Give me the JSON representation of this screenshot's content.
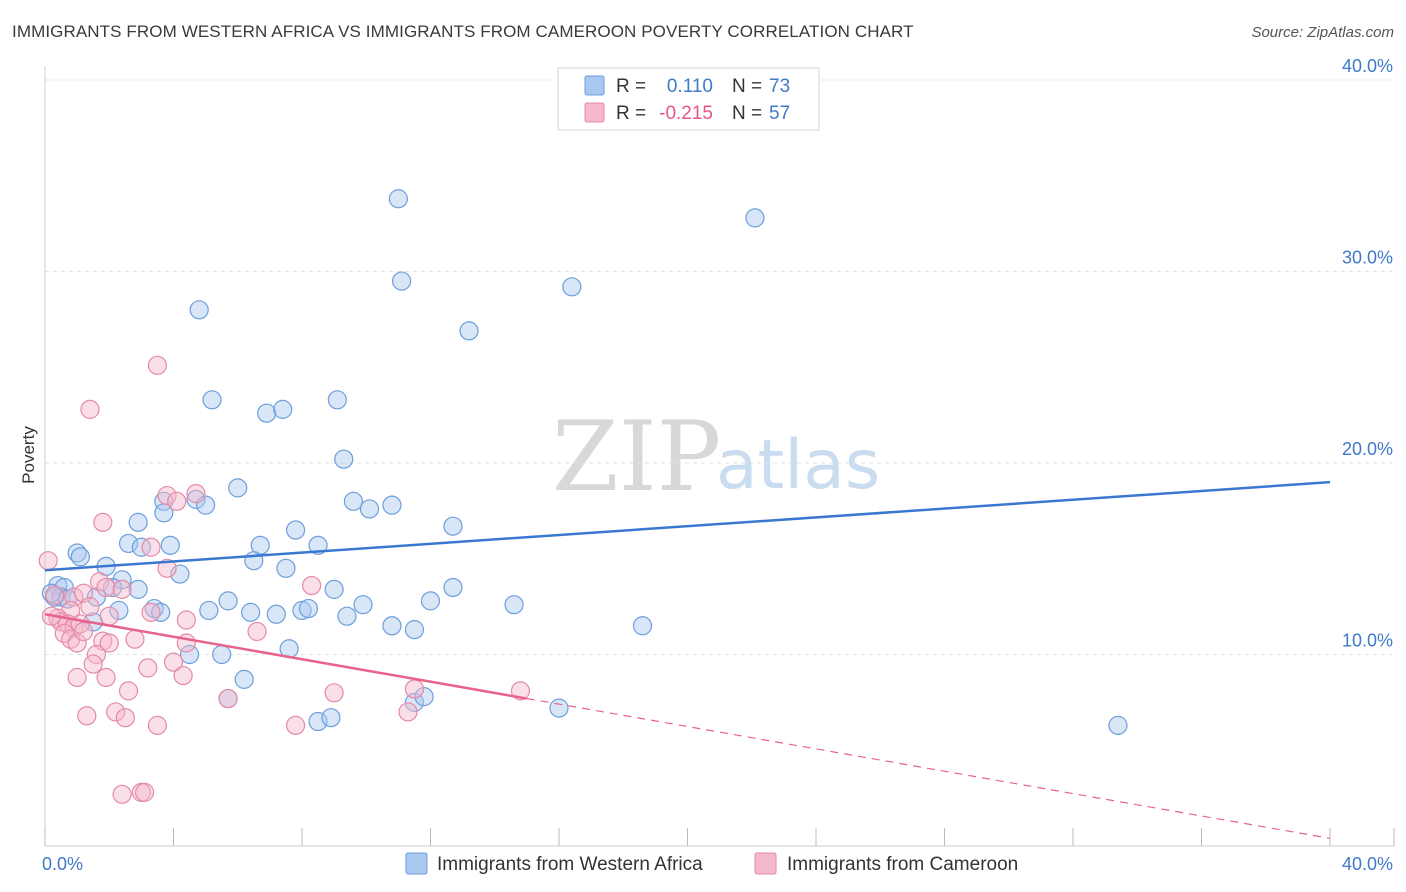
{
  "header": {
    "title": "IMMIGRANTS FROM WESTERN AFRICA VS IMMIGRANTS FROM CAMEROON POVERTY CORRELATION CHART",
    "source": "Source: ZipAtlas.com"
  },
  "watermark": {
    "zip": "ZIP",
    "atlas": "atlas"
  },
  "colors": {
    "blue": "#3a78d0",
    "blue_fill": "#a9c8ef",
    "pink": "#e8638c",
    "pink_fill": "#f6b9cb",
    "axis_label": "#3f7ac9",
    "grid": "#e2e2e2"
  },
  "legend": {
    "rows": [
      {
        "r_label": "R =",
        "r_value": "0.110",
        "n_label": "N =",
        "n_value": "73"
      },
      {
        "r_label": "R =",
        "r_value": "-0.215",
        "n_label": "N =",
        "n_value": "57"
      }
    ]
  },
  "chart_data": {
    "type": "scatter",
    "title": "IMMIGRANTS FROM WESTERN AFRICA VS IMMIGRANTS FROM CAMEROON POVERTY CORRELATION CHART",
    "xlabel": "",
    "ylabel": "Poverty",
    "xlim": [
      0,
      40
    ],
    "ylim": [
      0,
      40
    ],
    "x_tick_labels": [
      "0.0%",
      "40.0%"
    ],
    "y_tick_labels": [
      "10.0%",
      "20.0%",
      "30.0%",
      "40.0%"
    ],
    "y_tick_values": [
      10,
      20,
      30,
      40
    ],
    "legend_position": "top-center",
    "series": [
      {
        "name": "Immigrants from Western Africa",
        "color": "#3a78d0",
        "r": 0.11,
        "n": 73,
        "trend": {
          "x0": 0,
          "y0": 14.4,
          "x1": 40,
          "y1": 19.0
        },
        "points": [
          [
            11.0,
            33.8
          ],
          [
            11.1,
            29.5
          ],
          [
            22.1,
            32.8
          ],
          [
            16.4,
            29.2
          ],
          [
            4.8,
            28.0
          ],
          [
            13.2,
            26.9
          ],
          [
            5.2,
            23.3
          ],
          [
            6.9,
            22.6
          ],
          [
            7.4,
            22.8
          ],
          [
            9.1,
            23.3
          ],
          [
            9.3,
            20.2
          ],
          [
            6.0,
            18.7
          ],
          [
            3.7,
            18.0
          ],
          [
            4.7,
            18.1
          ],
          [
            5.0,
            17.8
          ],
          [
            9.6,
            18.0
          ],
          [
            10.1,
            17.6
          ],
          [
            10.8,
            17.8
          ],
          [
            3.7,
            17.4
          ],
          [
            2.9,
            16.9
          ],
          [
            7.8,
            16.5
          ],
          [
            12.7,
            16.7
          ],
          [
            2.6,
            15.8
          ],
          [
            3.0,
            15.6
          ],
          [
            3.9,
            15.7
          ],
          [
            6.7,
            15.7
          ],
          [
            8.5,
            15.7
          ],
          [
            1.0,
            15.3
          ],
          [
            1.1,
            15.1
          ],
          [
            6.5,
            14.9
          ],
          [
            1.9,
            14.6
          ],
          [
            7.5,
            14.5
          ],
          [
            4.2,
            14.2
          ],
          [
            2.4,
            13.9
          ],
          [
            0.4,
            13.6
          ],
          [
            0.6,
            13.5
          ],
          [
            2.1,
            13.5
          ],
          [
            2.9,
            13.4
          ],
          [
            9.0,
            13.4
          ],
          [
            12.7,
            13.5
          ],
          [
            0.3,
            13.0
          ],
          [
            0.5,
            13.0
          ],
          [
            0.7,
            12.9
          ],
          [
            1.6,
            13.0
          ],
          [
            5.7,
            12.8
          ],
          [
            12.0,
            12.8
          ],
          [
            9.9,
            12.6
          ],
          [
            14.6,
            12.6
          ],
          [
            2.3,
            12.3
          ],
          [
            3.4,
            12.4
          ],
          [
            3.6,
            12.2
          ],
          [
            5.1,
            12.3
          ],
          [
            6.4,
            12.2
          ],
          [
            7.2,
            12.1
          ],
          [
            8.0,
            12.3
          ],
          [
            8.2,
            12.4
          ],
          [
            9.4,
            12.0
          ],
          [
            1.5,
            11.7
          ],
          [
            10.8,
            11.5
          ],
          [
            11.5,
            11.3
          ],
          [
            18.6,
            11.5
          ],
          [
            7.6,
            10.3
          ],
          [
            4.5,
            10.0
          ],
          [
            5.5,
            10.0
          ],
          [
            6.2,
            8.7
          ],
          [
            5.7,
            7.7
          ],
          [
            11.5,
            7.5
          ],
          [
            11.8,
            7.8
          ],
          [
            16.0,
            7.2
          ],
          [
            8.5,
            6.5
          ],
          [
            8.9,
            6.7
          ],
          [
            33.4,
            6.3
          ],
          [
            0.2,
            13.2
          ]
        ]
      },
      {
        "name": "Immigrants from Cameroon",
        "color": "#e8638c",
        "r": -0.215,
        "n": 57,
        "trend": {
          "x0": 0,
          "y0": 12.1,
          "x1": 15.0,
          "y1": 7.7,
          "dash_to_x": 40,
          "dash_to_y": 0.4
        },
        "points": [
          [
            0.1,
            14.9
          ],
          [
            3.5,
            25.1
          ],
          [
            1.4,
            22.8
          ],
          [
            3.8,
            18.3
          ],
          [
            4.7,
            18.4
          ],
          [
            1.8,
            16.9
          ],
          [
            4.1,
            18.0
          ],
          [
            3.3,
            15.6
          ],
          [
            3.8,
            14.5
          ],
          [
            8.3,
            13.6
          ],
          [
            1.7,
            13.8
          ],
          [
            1.9,
            13.5
          ],
          [
            2.4,
            13.4
          ],
          [
            0.3,
            13.1
          ],
          [
            0.9,
            13.0
          ],
          [
            1.2,
            13.2
          ],
          [
            1.4,
            12.5
          ],
          [
            0.8,
            12.3
          ],
          [
            0.4,
            11.9
          ],
          [
            0.5,
            11.7
          ],
          [
            0.7,
            11.6
          ],
          [
            0.9,
            11.4
          ],
          [
            1.1,
            11.6
          ],
          [
            2.0,
            12.0
          ],
          [
            3.3,
            12.2
          ],
          [
            4.4,
            11.8
          ],
          [
            6.6,
            11.2
          ],
          [
            0.6,
            11.1
          ],
          [
            0.8,
            10.8
          ],
          [
            1.0,
            10.6
          ],
          [
            1.8,
            10.7
          ],
          [
            2.0,
            10.6
          ],
          [
            2.8,
            10.8
          ],
          [
            4.4,
            10.6
          ],
          [
            1.6,
            10.0
          ],
          [
            4.0,
            9.6
          ],
          [
            1.5,
            9.5
          ],
          [
            3.2,
            9.3
          ],
          [
            1.0,
            8.8
          ],
          [
            1.9,
            8.8
          ],
          [
            4.3,
            8.9
          ],
          [
            2.6,
            8.1
          ],
          [
            9.0,
            8.0
          ],
          [
            11.5,
            8.2
          ],
          [
            14.8,
            8.1
          ],
          [
            5.7,
            7.7
          ],
          [
            2.2,
            7.0
          ],
          [
            1.3,
            6.8
          ],
          [
            2.5,
            6.7
          ],
          [
            11.3,
            7.0
          ],
          [
            3.5,
            6.3
          ],
          [
            7.8,
            6.3
          ],
          [
            2.4,
            2.7
          ],
          [
            3.0,
            2.8
          ],
          [
            3.1,
            2.8
          ],
          [
            1.2,
            11.2
          ],
          [
            0.2,
            12.0
          ]
        ]
      }
    ]
  }
}
